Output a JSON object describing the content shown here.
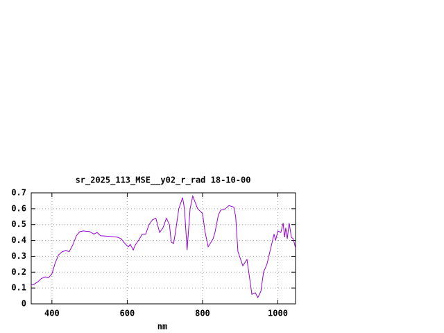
{
  "chart_data": {
    "type": "line",
    "title": "sr_2025_113_MSE__y02_r_rad 18-10-00",
    "x_label": "nm",
    "x": [
      345,
      350,
      363,
      372,
      382,
      391,
      400,
      409,
      418,
      428,
      437,
      446,
      455,
      465,
      474,
      483,
      501,
      511,
      520,
      529,
      557,
      575,
      584,
      594,
      603,
      608,
      616,
      621,
      630,
      640,
      649,
      658,
      667,
      676,
      686,
      695,
      704,
      712,
      717,
      723,
      728,
      737,
      747,
      752,
      759,
      767,
      774,
      787,
      800,
      807,
      815,
      828,
      833,
      842,
      848,
      861,
      870,
      883,
      888,
      894,
      907,
      918,
      927,
      931,
      940,
      947,
      955,
      962,
      971,
      981,
      990,
      994,
      1000,
      1008,
      1014,
      1018,
      1021,
      1025,
      1030,
      1036,
      1041,
      1047
    ],
    "values": [
      0.12,
      0.12,
      0.14,
      0.16,
      0.17,
      0.165,
      0.19,
      0.26,
      0.31,
      0.33,
      0.335,
      0.33,
      0.37,
      0.43,
      0.455,
      0.46,
      0.455,
      0.44,
      0.45,
      0.43,
      0.425,
      0.42,
      0.41,
      0.38,
      0.36,
      0.375,
      0.34,
      0.37,
      0.4,
      0.44,
      0.44,
      0.5,
      0.53,
      0.54,
      0.45,
      0.48,
      0.54,
      0.5,
      0.39,
      0.38,
      0.45,
      0.6,
      0.67,
      0.6,
      0.34,
      0.6,
      0.68,
      0.6,
      0.57,
      0.45,
      0.36,
      0.41,
      0.45,
      0.56,
      0.59,
      0.6,
      0.62,
      0.61,
      0.55,
      0.33,
      0.24,
      0.28,
      0.13,
      0.06,
      0.07,
      0.04,
      0.08,
      0.2,
      0.25,
      0.35,
      0.44,
      0.4,
      0.46,
      0.45,
      0.51,
      0.42,
      0.48,
      0.41,
      0.51,
      0.42,
      0.41,
      0.35
    ],
    "color": "#9400d3",
    "xlim": [
      345,
      1047
    ],
    "xticks": [
      400,
      600,
      800,
      1000
    ],
    "ylim": [
      0,
      0.7
    ],
    "yticks": [
      0,
      0.1,
      0.2,
      0.3,
      0.4,
      0.5,
      0.6,
      0.7
    ],
    "grid": true
  }
}
